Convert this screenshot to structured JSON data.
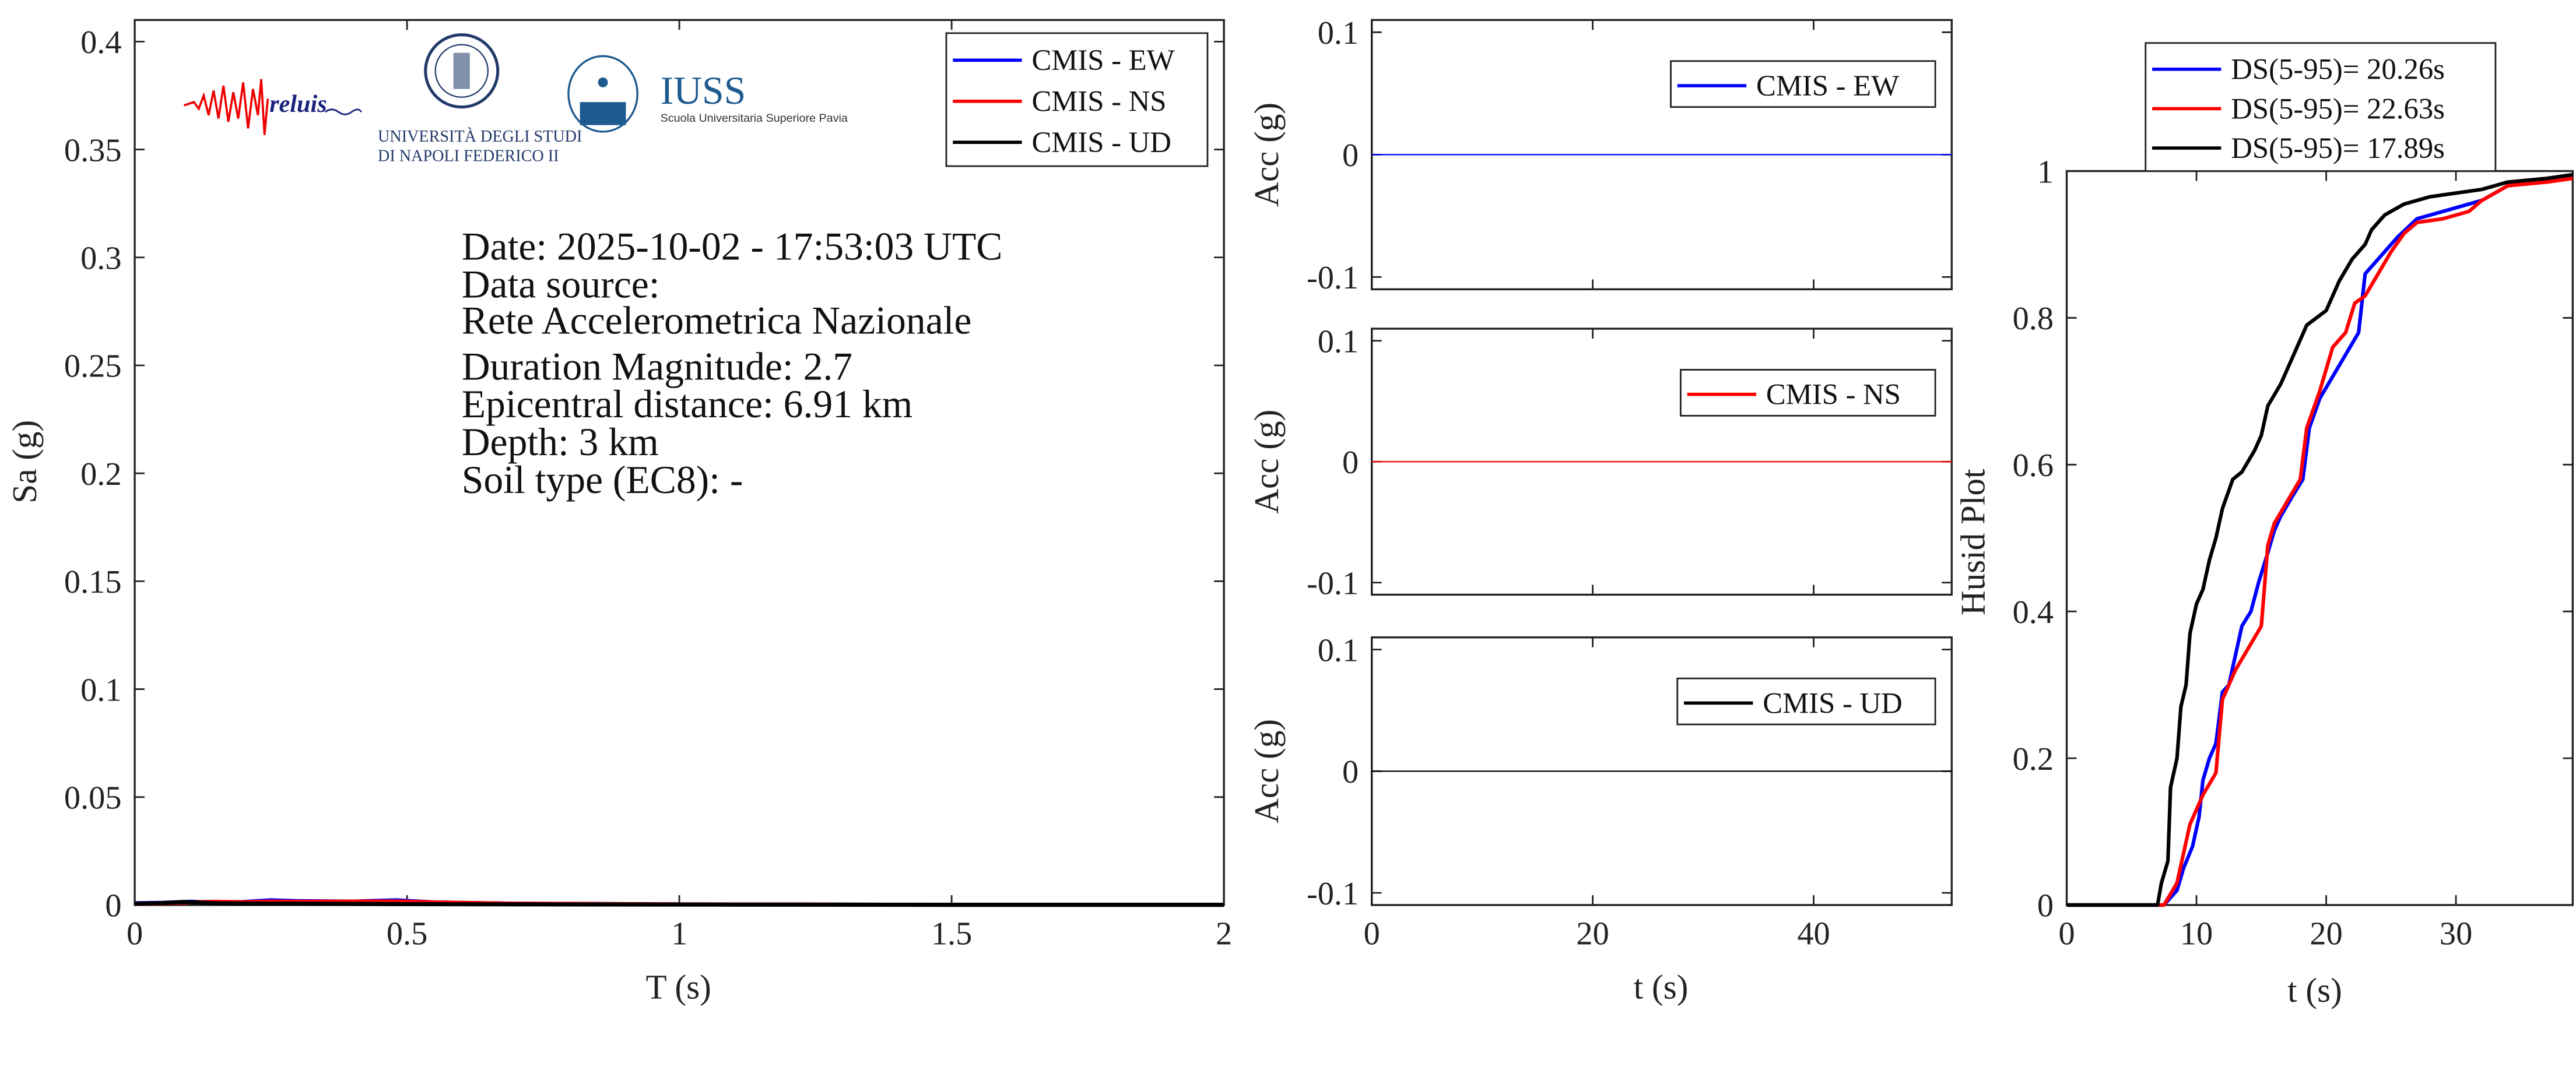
{
  "logos": {
    "reluis": "reluis",
    "napoli_line1": "UNIVERSITÀ DEGLI STUDI",
    "napoli_line2": "DI NAPOLI FEDERICO II",
    "iuss": "IUSS",
    "iuss_sub": "Scuola Universitaria Superiore Pavia"
  },
  "info": {
    "date": "Date: 2025-10-02 - 17:53:03 UTC",
    "source_label": "Data source:",
    "source": "Rete Accelerometrica Nazionale",
    "magnitude": "Duration Magnitude: 2.7",
    "distance": "Epicentral distance: 6.91 km",
    "depth": "Depth: 3 km",
    "soil": "Soil type (EC8): -"
  },
  "colors": {
    "EW": "#0000ff",
    "NS": "#ff0000",
    "UD": "#000000"
  },
  "chart_data": [
    {
      "type": "line",
      "xlabel": "T (s)",
      "ylabel": "Sa (g)",
      "xlim": [
        0,
        2
      ],
      "ylim": [
        0,
        0.41
      ],
      "xticks": [
        "0",
        "0.5",
        "1",
        "1.5",
        "2"
      ],
      "yticks": [
        "0",
        "0.05",
        "0.1",
        "0.15",
        "0.2",
        "0.25",
        "0.3",
        "0.35",
        "0.4"
      ],
      "legend_position": "top-right",
      "series": [
        {
          "name": "CMIS - EW",
          "color": "#0000ff",
          "x": [
            0,
            0.05,
            0.1,
            0.15,
            0.2,
            0.25,
            0.3,
            0.4,
            0.48,
            0.55,
            0.7,
            1,
            1.5,
            2
          ],
          "y": [
            0.0008,
            0.001,
            0.0015,
            0.0012,
            0.0014,
            0.0022,
            0.0018,
            0.0016,
            0.0022,
            0.0012,
            0.0006,
            0.0003,
            0.0001,
            0.0001
          ]
        },
        {
          "name": "CMIS - NS",
          "color": "#ff0000",
          "x": [
            0,
            0.05,
            0.1,
            0.15,
            0.2,
            0.25,
            0.3,
            0.4,
            0.48,
            0.55,
            0.7,
            1,
            1.5,
            2
          ],
          "y": [
            0.0005,
            0.0008,
            0.0012,
            0.0015,
            0.0013,
            0.0016,
            0.0015,
            0.0016,
            0.0017,
            0.0012,
            0.0006,
            0.0003,
            0.0001,
            0.0001
          ]
        },
        {
          "name": "CMIS - UD",
          "color": "#000000",
          "x": [
            0,
            0.05,
            0.09,
            0.15,
            0.2,
            0.3,
            0.4,
            0.5,
            0.7,
            1,
            1.5,
            2
          ],
          "y": [
            0.0006,
            0.0009,
            0.0014,
            0.0008,
            0.0007,
            0.0006,
            0.0005,
            0.0004,
            0.0003,
            0.0002,
            0.0001,
            0.0001
          ]
        }
      ]
    },
    {
      "type": "line",
      "xlabel": "t (s)",
      "xlim": [
        0,
        52.5
      ],
      "xticks": [
        "0",
        "20",
        "40"
      ],
      "subplots": [
        {
          "ylabel": "Acc (g)",
          "ylim": [
            -0.11,
            0.11
          ],
          "yticks": [
            "-0.1",
            "0",
            "0.1"
          ],
          "legend_position": "top-right",
          "series": [
            {
              "name": "CMIS - EW",
              "color": "#0000ff",
              "x": [
                0,
                52.5
              ],
              "y": [
                0,
                0
              ]
            }
          ]
        },
        {
          "ylabel": "Acc (g)",
          "ylim": [
            -0.11,
            0.11
          ],
          "yticks": [
            "-0.1",
            "0",
            "0.1"
          ],
          "legend_position": "top-right",
          "series": [
            {
              "name": "CMIS - NS",
              "color": "#ff0000",
              "x": [
                0,
                52.5
              ],
              "y": [
                0,
                0
              ]
            }
          ]
        },
        {
          "ylabel": "Acc (g)",
          "ylim": [
            -0.11,
            0.11
          ],
          "yticks": [
            "-0.1",
            "0",
            "0.1"
          ],
          "legend_position": "top-right",
          "series": [
            {
              "name": "CMIS - UD",
              "color": "#000000",
              "x": [
                0,
                52.5
              ],
              "y": [
                0,
                0
              ]
            }
          ]
        }
      ]
    },
    {
      "type": "line",
      "xlabel": "t (s)",
      "ylabel": "Husid Plot",
      "xlim": [
        0,
        39
      ],
      "ylim": [
        0,
        1
      ],
      "xticks": [
        "0",
        "10",
        "20",
        "30"
      ],
      "yticks": [
        "0",
        "0.2",
        "0.4",
        "0.6",
        "0.8",
        "1"
      ],
      "legend_position": "top-outside",
      "series": [
        {
          "name": "DS(5-95)= 20.26s",
          "color": "#0000ff",
          "x": [
            0,
            7.5,
            8.5,
            9,
            9.7,
            10.2,
            10.5,
            11,
            11.5,
            12,
            12.5,
            13,
            13.5,
            14.2,
            14.8,
            15.5,
            16,
            16.5,
            17.5,
            18.2,
            18.7,
            19.5,
            20.5,
            21.5,
            22.5,
            23,
            23.5,
            24.5,
            25.5,
            27,
            30,
            32,
            34,
            37,
            39
          ],
          "y": [
            0,
            0,
            0.02,
            0.05,
            0.08,
            0.12,
            0.17,
            0.2,
            0.22,
            0.29,
            0.3,
            0.34,
            0.38,
            0.4,
            0.44,
            0.48,
            0.51,
            0.53,
            0.56,
            0.58,
            0.65,
            0.69,
            0.72,
            0.75,
            0.78,
            0.86,
            0.87,
            0.89,
            0.91,
            0.935,
            0.95,
            0.96,
            0.98,
            0.99,
            0.995
          ]
        },
        {
          "name": "DS(5-95)= 22.63s",
          "color": "#ff0000",
          "x": [
            0,
            7.5,
            8.5,
            9,
            9.5,
            10.5,
            11.5,
            12,
            12.5,
            13,
            14,
            15,
            15.5,
            16,
            17,
            18,
            18.5,
            19.5,
            20.5,
            21.5,
            22.2,
            23,
            24,
            25,
            26,
            27,
            29,
            31,
            32,
            34,
            37,
            39
          ],
          "y": [
            0,
            0,
            0.03,
            0.07,
            0.11,
            0.15,
            0.18,
            0.28,
            0.3,
            0.32,
            0.35,
            0.38,
            0.49,
            0.52,
            0.55,
            0.58,
            0.65,
            0.7,
            0.76,
            0.78,
            0.82,
            0.83,
            0.86,
            0.89,
            0.915,
            0.93,
            0.935,
            0.945,
            0.96,
            0.98,
            0.985,
            0.99
          ]
        },
        {
          "name": "DS(5-95)= 17.89s",
          "color": "#000000",
          "x": [
            0,
            7,
            7.3,
            7.8,
            8,
            8.5,
            8.8,
            9.2,
            9.5,
            10,
            10.5,
            11,
            11.5,
            12,
            12.8,
            13.5,
            14.5,
            15,
            15.5,
            16.5,
            17.5,
            18.5,
            20,
            21,
            22,
            23,
            23.5,
            24.5,
            26,
            28,
            30,
            32,
            34,
            37,
            39
          ],
          "y": [
            0,
            0,
            0.03,
            0.06,
            0.16,
            0.2,
            0.27,
            0.3,
            0.37,
            0.41,
            0.43,
            0.47,
            0.5,
            0.54,
            0.58,
            0.59,
            0.62,
            0.64,
            0.68,
            0.71,
            0.75,
            0.79,
            0.81,
            0.85,
            0.88,
            0.9,
            0.92,
            0.94,
            0.955,
            0.965,
            0.97,
            0.975,
            0.985,
            0.99,
            0.995
          ]
        }
      ]
    }
  ]
}
